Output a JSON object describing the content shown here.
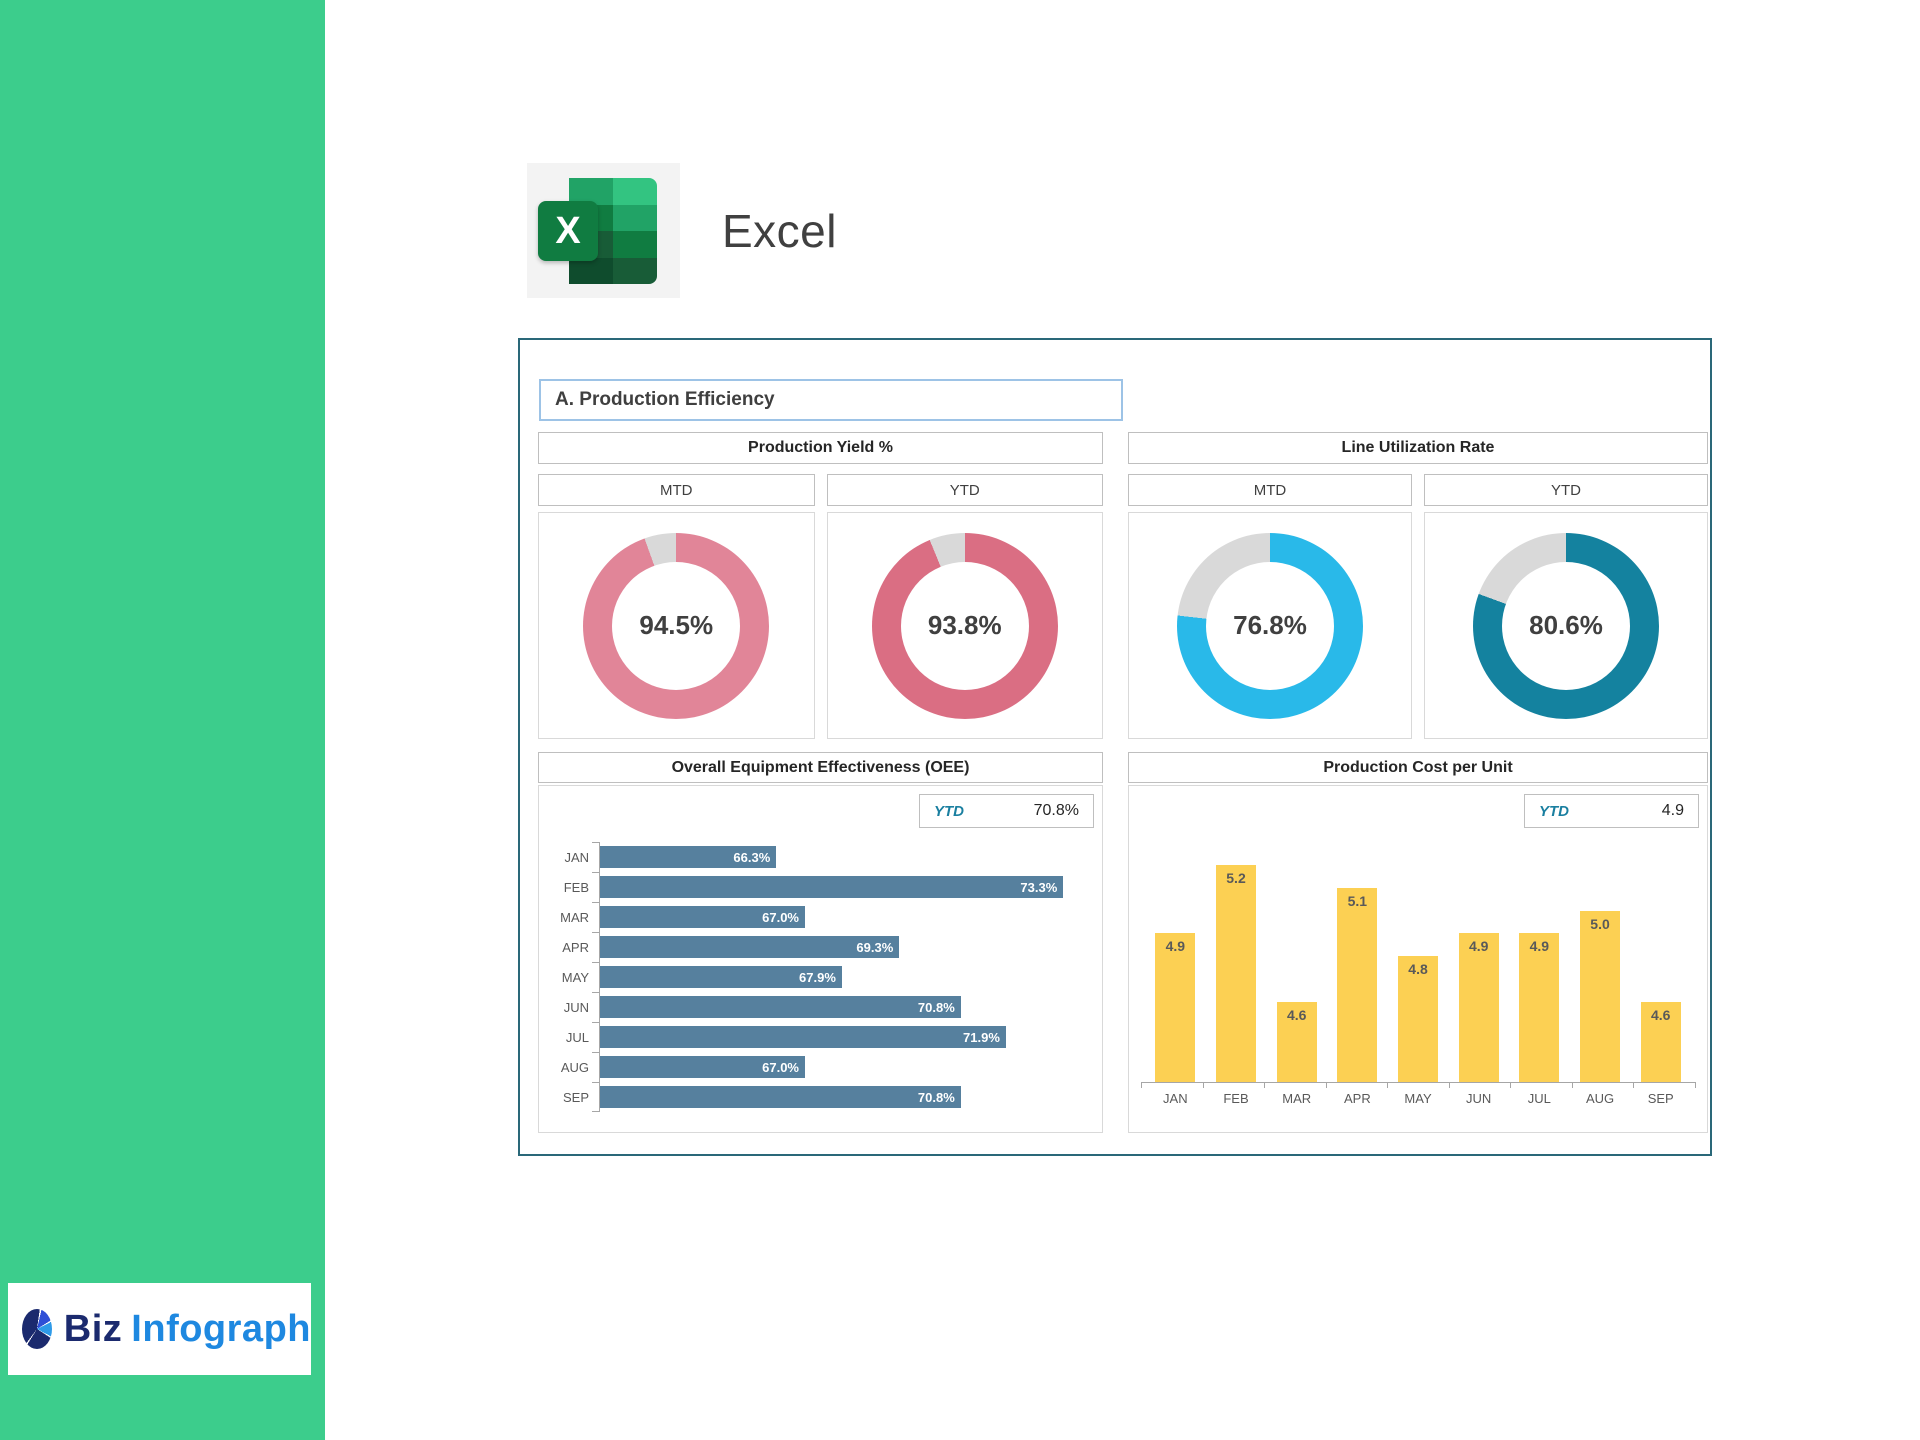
{
  "app": {
    "name": "Excel"
  },
  "colors": {
    "sidebar": "#3ccd8c",
    "dashboard_border": "#2a6879",
    "title_border": "#9dc3e6",
    "panel_border": "#d9d9d9",
    "header_border": "#bfbfbf",
    "ytd_accent": "#1a7fa0",
    "oee_bar": "#56809e",
    "cost_bar": "#fcd053",
    "donut_track": "#d9d9d9"
  },
  "dashboard": {
    "title": "A. Production Efficiency",
    "kpi_sections": [
      {
        "title": "Production Yield %",
        "columns": [
          "MTD",
          "YTD"
        ]
      },
      {
        "title": "Line Utilization Rate",
        "columns": [
          "MTD",
          "YTD"
        ]
      }
    ]
  },
  "chart_data": [
    {
      "type": "donut",
      "section": "Production Yield %",
      "period": "MTD",
      "value": 94.5,
      "display": "94.5%",
      "color": "#e18598",
      "track_color": "#d9d9d9"
    },
    {
      "type": "donut",
      "section": "Production Yield %",
      "period": "YTD",
      "value": 93.8,
      "display": "93.8%",
      "color": "#da6e83",
      "track_color": "#d9d9d9"
    },
    {
      "type": "donut",
      "section": "Line Utilization Rate",
      "period": "MTD",
      "value": 76.8,
      "display": "76.8%",
      "color": "#29b9e9",
      "track_color": "#d9d9d9"
    },
    {
      "type": "donut",
      "section": "Line Utilization Rate",
      "period": "YTD",
      "value": 80.6,
      "display": "80.6%",
      "color": "#14829f",
      "track_color": "#d9d9d9"
    },
    {
      "type": "bar",
      "orientation": "horizontal",
      "title": "Overall Equipment Effectiveness (OEE)",
      "ytd_label": "YTD",
      "ytd_value": "70.8%",
      "categories": [
        "JAN",
        "FEB",
        "MAR",
        "APR",
        "MAY",
        "JUN",
        "JUL",
        "AUG",
        "SEP"
      ],
      "values": [
        66.3,
        73.3,
        67.0,
        69.3,
        67.9,
        70.8,
        71.9,
        67.0,
        70.8
      ],
      "labels": [
        "66.3%",
        "73.3%",
        "67.0%",
        "69.3%",
        "67.9%",
        "70.8%",
        "71.9%",
        "67.0%",
        "70.8%"
      ],
      "xlim": [
        62,
        74
      ],
      "bar_color": "#56809e",
      "grid": false,
      "value_labels": "inside-end"
    },
    {
      "type": "bar",
      "orientation": "vertical",
      "title": "Production Cost per Unit",
      "ytd_label": "YTD",
      "ytd_value": "4.9",
      "categories": [
        "JAN",
        "FEB",
        "MAR",
        "APR",
        "MAY",
        "JUN",
        "JUL",
        "AUG",
        "SEP"
      ],
      "values": [
        4.9,
        5.2,
        4.6,
        5.1,
        4.8,
        4.9,
        4.9,
        5.0,
        4.6
      ],
      "labels": [
        "4.9",
        "5.2",
        "4.6",
        "5.1",
        "4.8",
        "4.9",
        "4.9",
        "5.0",
        "4.6"
      ],
      "ylim": [
        4.25,
        5.3
      ],
      "bar_color": "#fcd053",
      "grid": false,
      "value_labels": "inside-top"
    }
  ],
  "footer_logo": {
    "brand_primary": "Biz",
    "brand_secondary": "Infograph"
  }
}
